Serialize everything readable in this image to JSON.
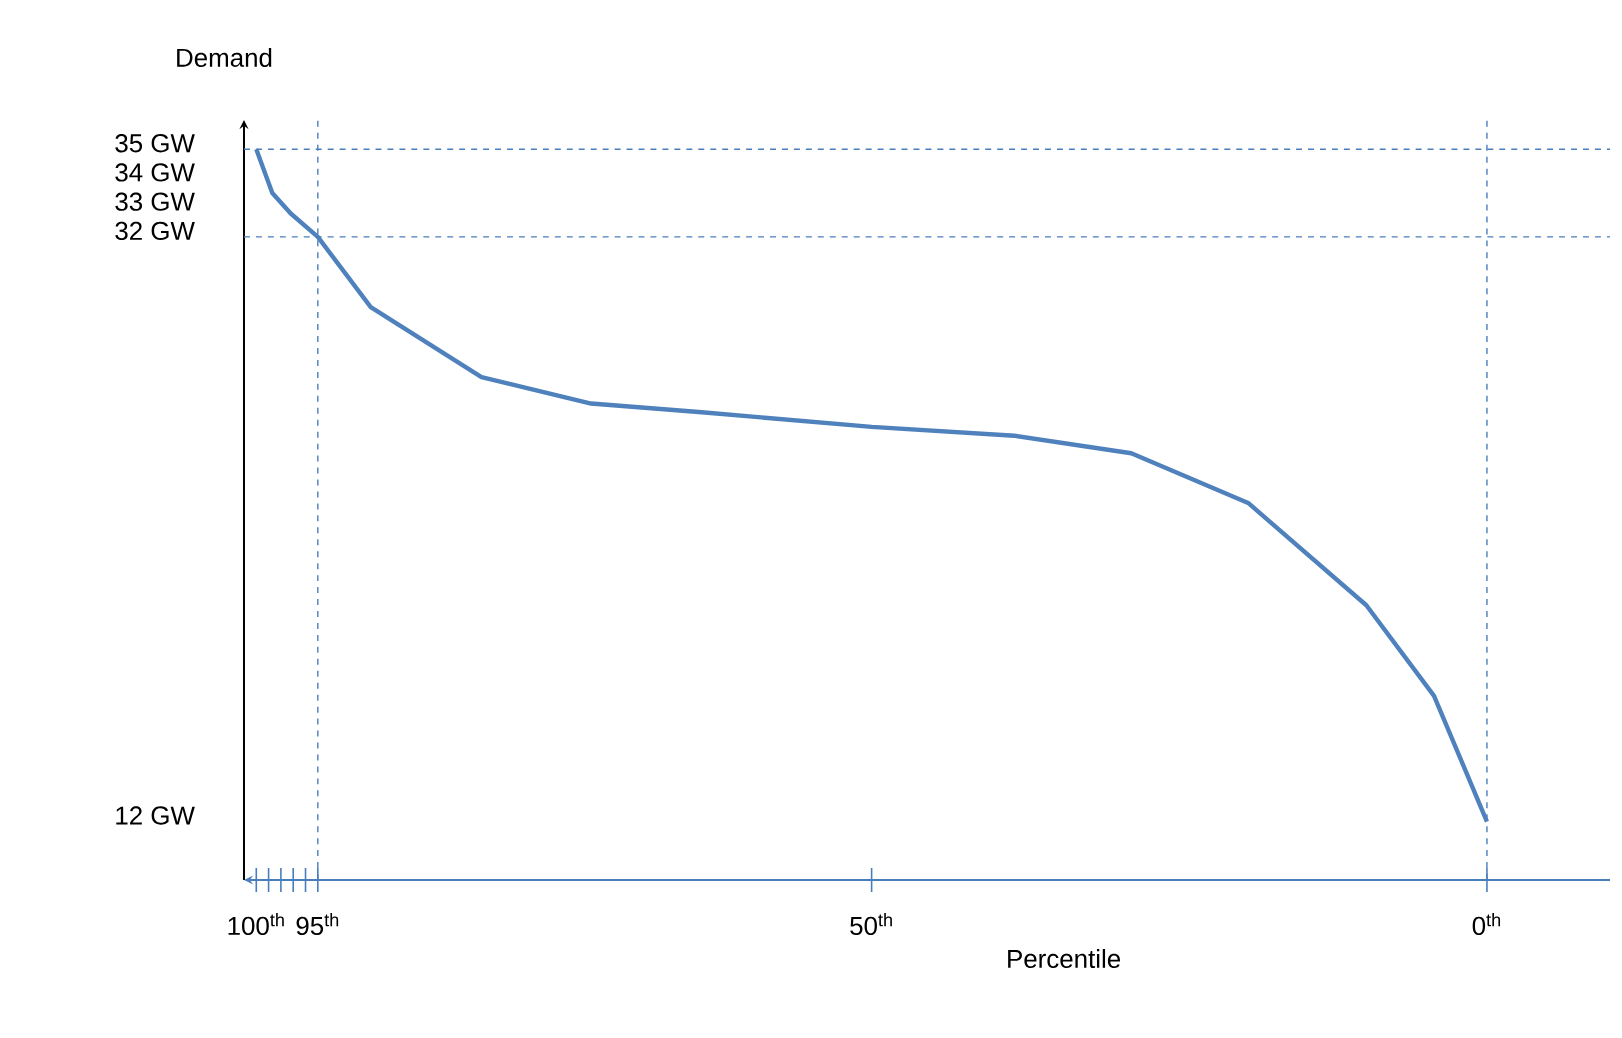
{
  "chart_data": {
    "type": "line",
    "xlabel": "Percentile",
    "ylabel": "Demand",
    "x": [
      100,
      98.7,
      97.2,
      95,
      90.7,
      81.7,
      72.8,
      63.8,
      50,
      38.4,
      28.9,
      19.4,
      9.8,
      4.3,
      0
    ],
    "series": [
      {
        "color": "#4f81bd",
        "values": [
          35,
          33.5,
          32.8,
          32,
          29.6,
          27.2,
          26.3,
          26,
          25.5,
          25.2,
          24.6,
          22.9,
          19.4,
          16.3,
          12
        ]
      }
    ],
    "xlim": [
      101,
      -10
    ],
    "ylim": [
      10,
      36
    ],
    "xticks": [
      {
        "value": 100,
        "label": "100$^{th}$"
      },
      {
        "value": 99,
        "label": null
      },
      {
        "value": 98,
        "label": null
      },
      {
        "value": 97,
        "label": null
      },
      {
        "value": 96,
        "label": null
      },
      {
        "value": 95,
        "label": "95$^{th}$"
      },
      {
        "value": 50,
        "label": "50$^{th}$"
      },
      {
        "value": 0,
        "label": "0$^{th}$"
      }
    ],
    "yticks": [
      {
        "value": 35,
        "label": "35 GW"
      },
      {
        "value": 34,
        "label": "34 GW"
      },
      {
        "value": 33,
        "label": "33 GW"
      },
      {
        "value": 32,
        "label": "32 GW"
      },
      {
        "value": 12,
        "label": "12 GW"
      }
    ],
    "ref_lines": [
      {
        "axis": "y",
        "value": 35,
        "color": "#4a7ebb",
        "line_style": "dashed"
      },
      {
        "axis": "y",
        "value": 32,
        "color": "#4a7ebb",
        "line_style": "dashed"
      },
      {
        "axis": "x",
        "value": 95,
        "color": "#4a7ebb",
        "line_style": "dashed"
      },
      {
        "axis": "x",
        "value": 0,
        "color": "#4a7ebb",
        "line_style": "dashed"
      }
    ],
    "marker": "none",
    "line_style": "solid"
  }
}
